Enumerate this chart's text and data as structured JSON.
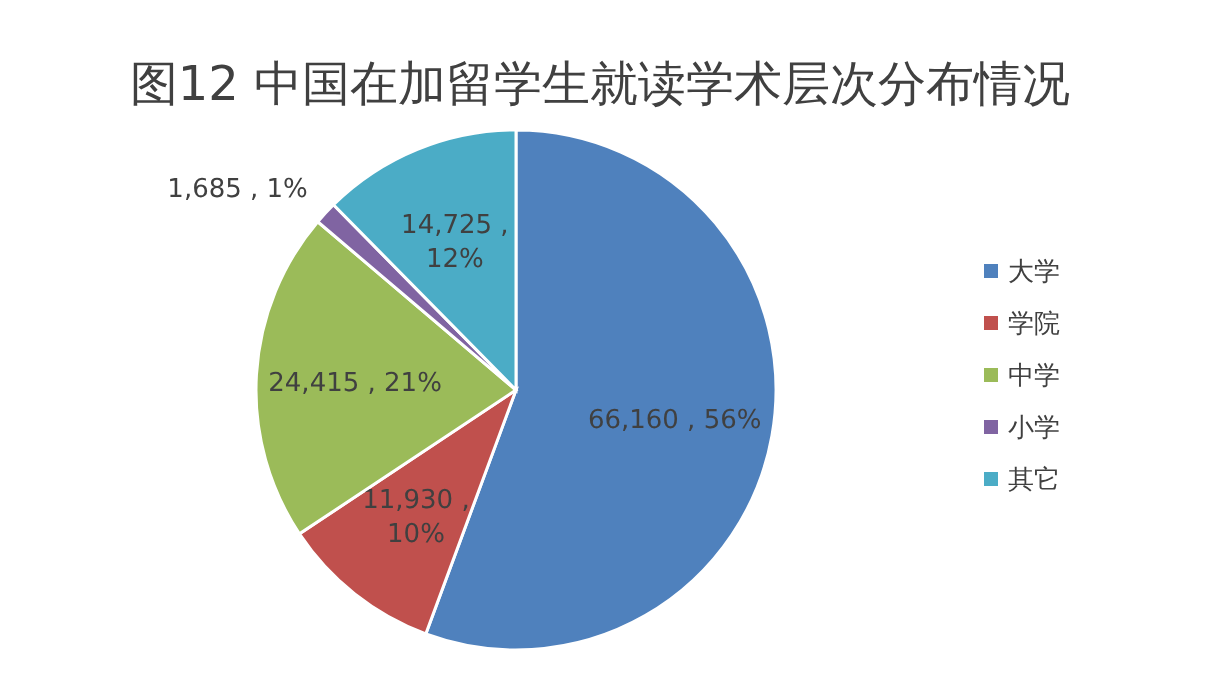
{
  "chart_data": {
    "type": "pie",
    "title": "图12 中国在加留学生就读学术层次分布情况",
    "categories": [
      "大学",
      "学院",
      "中学",
      "小学",
      "其它"
    ],
    "values": [
      66160,
      11930,
      24415,
      1685,
      14725
    ],
    "value_labels": [
      "66,160 , 56%",
      "11,930 , 10%",
      "24,415 , 21%",
      "1,685 , 1%",
      "14,725 , 12%"
    ],
    "colors": [
      "#4f81bd",
      "#c0504d",
      "#9bbb59",
      "#8064a2",
      "#4bacc6"
    ],
    "legend": "right"
  }
}
